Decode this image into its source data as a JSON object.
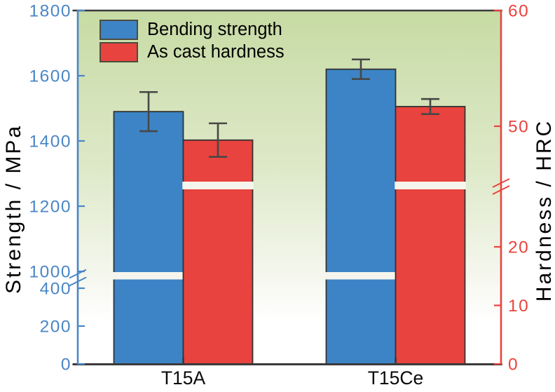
{
  "chart_data": {
    "type": "bar",
    "categories": [
      "T15A",
      "T15Ce"
    ],
    "series": [
      {
        "name": "Bending strength",
        "axis": "left",
        "color": "#3d84c6",
        "values": [
          1490,
          1620
        ],
        "errors": [
          60,
          30
        ]
      },
      {
        "name": "As cast hardness",
        "axis": "right",
        "color": "#e8433e",
        "values": [
          48.8,
          51.7
        ],
        "errors": [
          1.45,
          0.65
        ]
      }
    ],
    "left_axis": {
      "label": "Strength / MPa",
      "color": "#4a86c6",
      "lower_ticks": [
        0,
        200,
        400
      ],
      "upper_ticks": [
        1000,
        1200,
        1400,
        1600,
        1800
      ],
      "break_between": [
        400,
        1000
      ]
    },
    "right_axis": {
      "label": "Hardness / HRC",
      "color": "#e8433e",
      "lower_ticks": [
        0,
        10,
        20
      ],
      "upper_ticks": [
        50,
        60
      ],
      "break_between": [
        30,
        45
      ]
    },
    "x_axis": {
      "labels": [
        "T15A",
        "T15Ce"
      ]
    },
    "background_gradient": {
      "top": "#c7dba4",
      "bottom": "#ffffff"
    },
    "axis_break": true
  }
}
